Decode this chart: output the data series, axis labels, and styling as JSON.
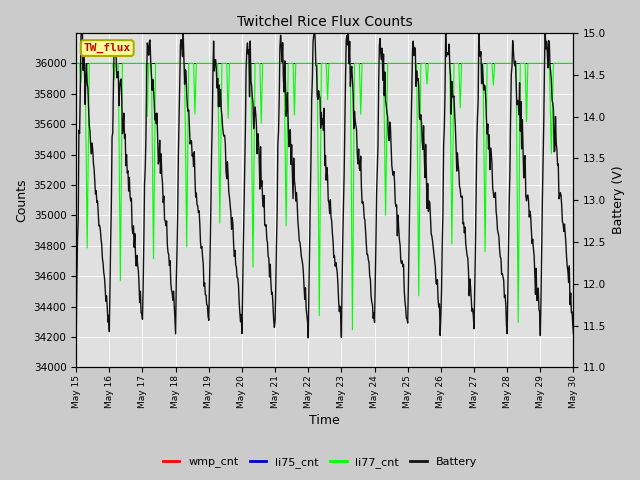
{
  "title": "Twitchel Rice Flux Counts",
  "xlabel": "Time",
  "ylabel_left": "Counts",
  "ylabel_right": "Battery (V)",
  "ylim_left": [
    34000,
    36200
  ],
  "ylim_right": [
    11.0,
    15.0
  ],
  "yticks_left": [
    34000,
    34200,
    34400,
    34600,
    34800,
    35000,
    35200,
    35400,
    35600,
    35800,
    36000
  ],
  "yticks_right": [
    11.0,
    11.5,
    12.0,
    12.5,
    13.0,
    13.5,
    14.0,
    14.5,
    15.0
  ],
  "xtick_labels": [
    "May 15",
    "May 16",
    "May 17",
    "May 18",
    "May 19",
    "May 20",
    "May 21",
    "May 22",
    "May 23",
    "May 24",
    "May 25",
    "May 26",
    "May 27",
    "May 28",
    "May 29",
    "May 30"
  ],
  "bg_color": "#cbcbcb",
  "plot_bg_color": "#e0e0e0",
  "legend_box_color": "#ffff99",
  "legend_box_edge": "#aaaa00",
  "li77_color": "#00ff00",
  "battery_color": "#111111",
  "wmp_color": "#ff0000",
  "li75_color": "#0000cc",
  "annotation_text": "TW_flux",
  "annotation_color": "#cc0000",
  "n_days": 15,
  "samples_per_day": 48
}
